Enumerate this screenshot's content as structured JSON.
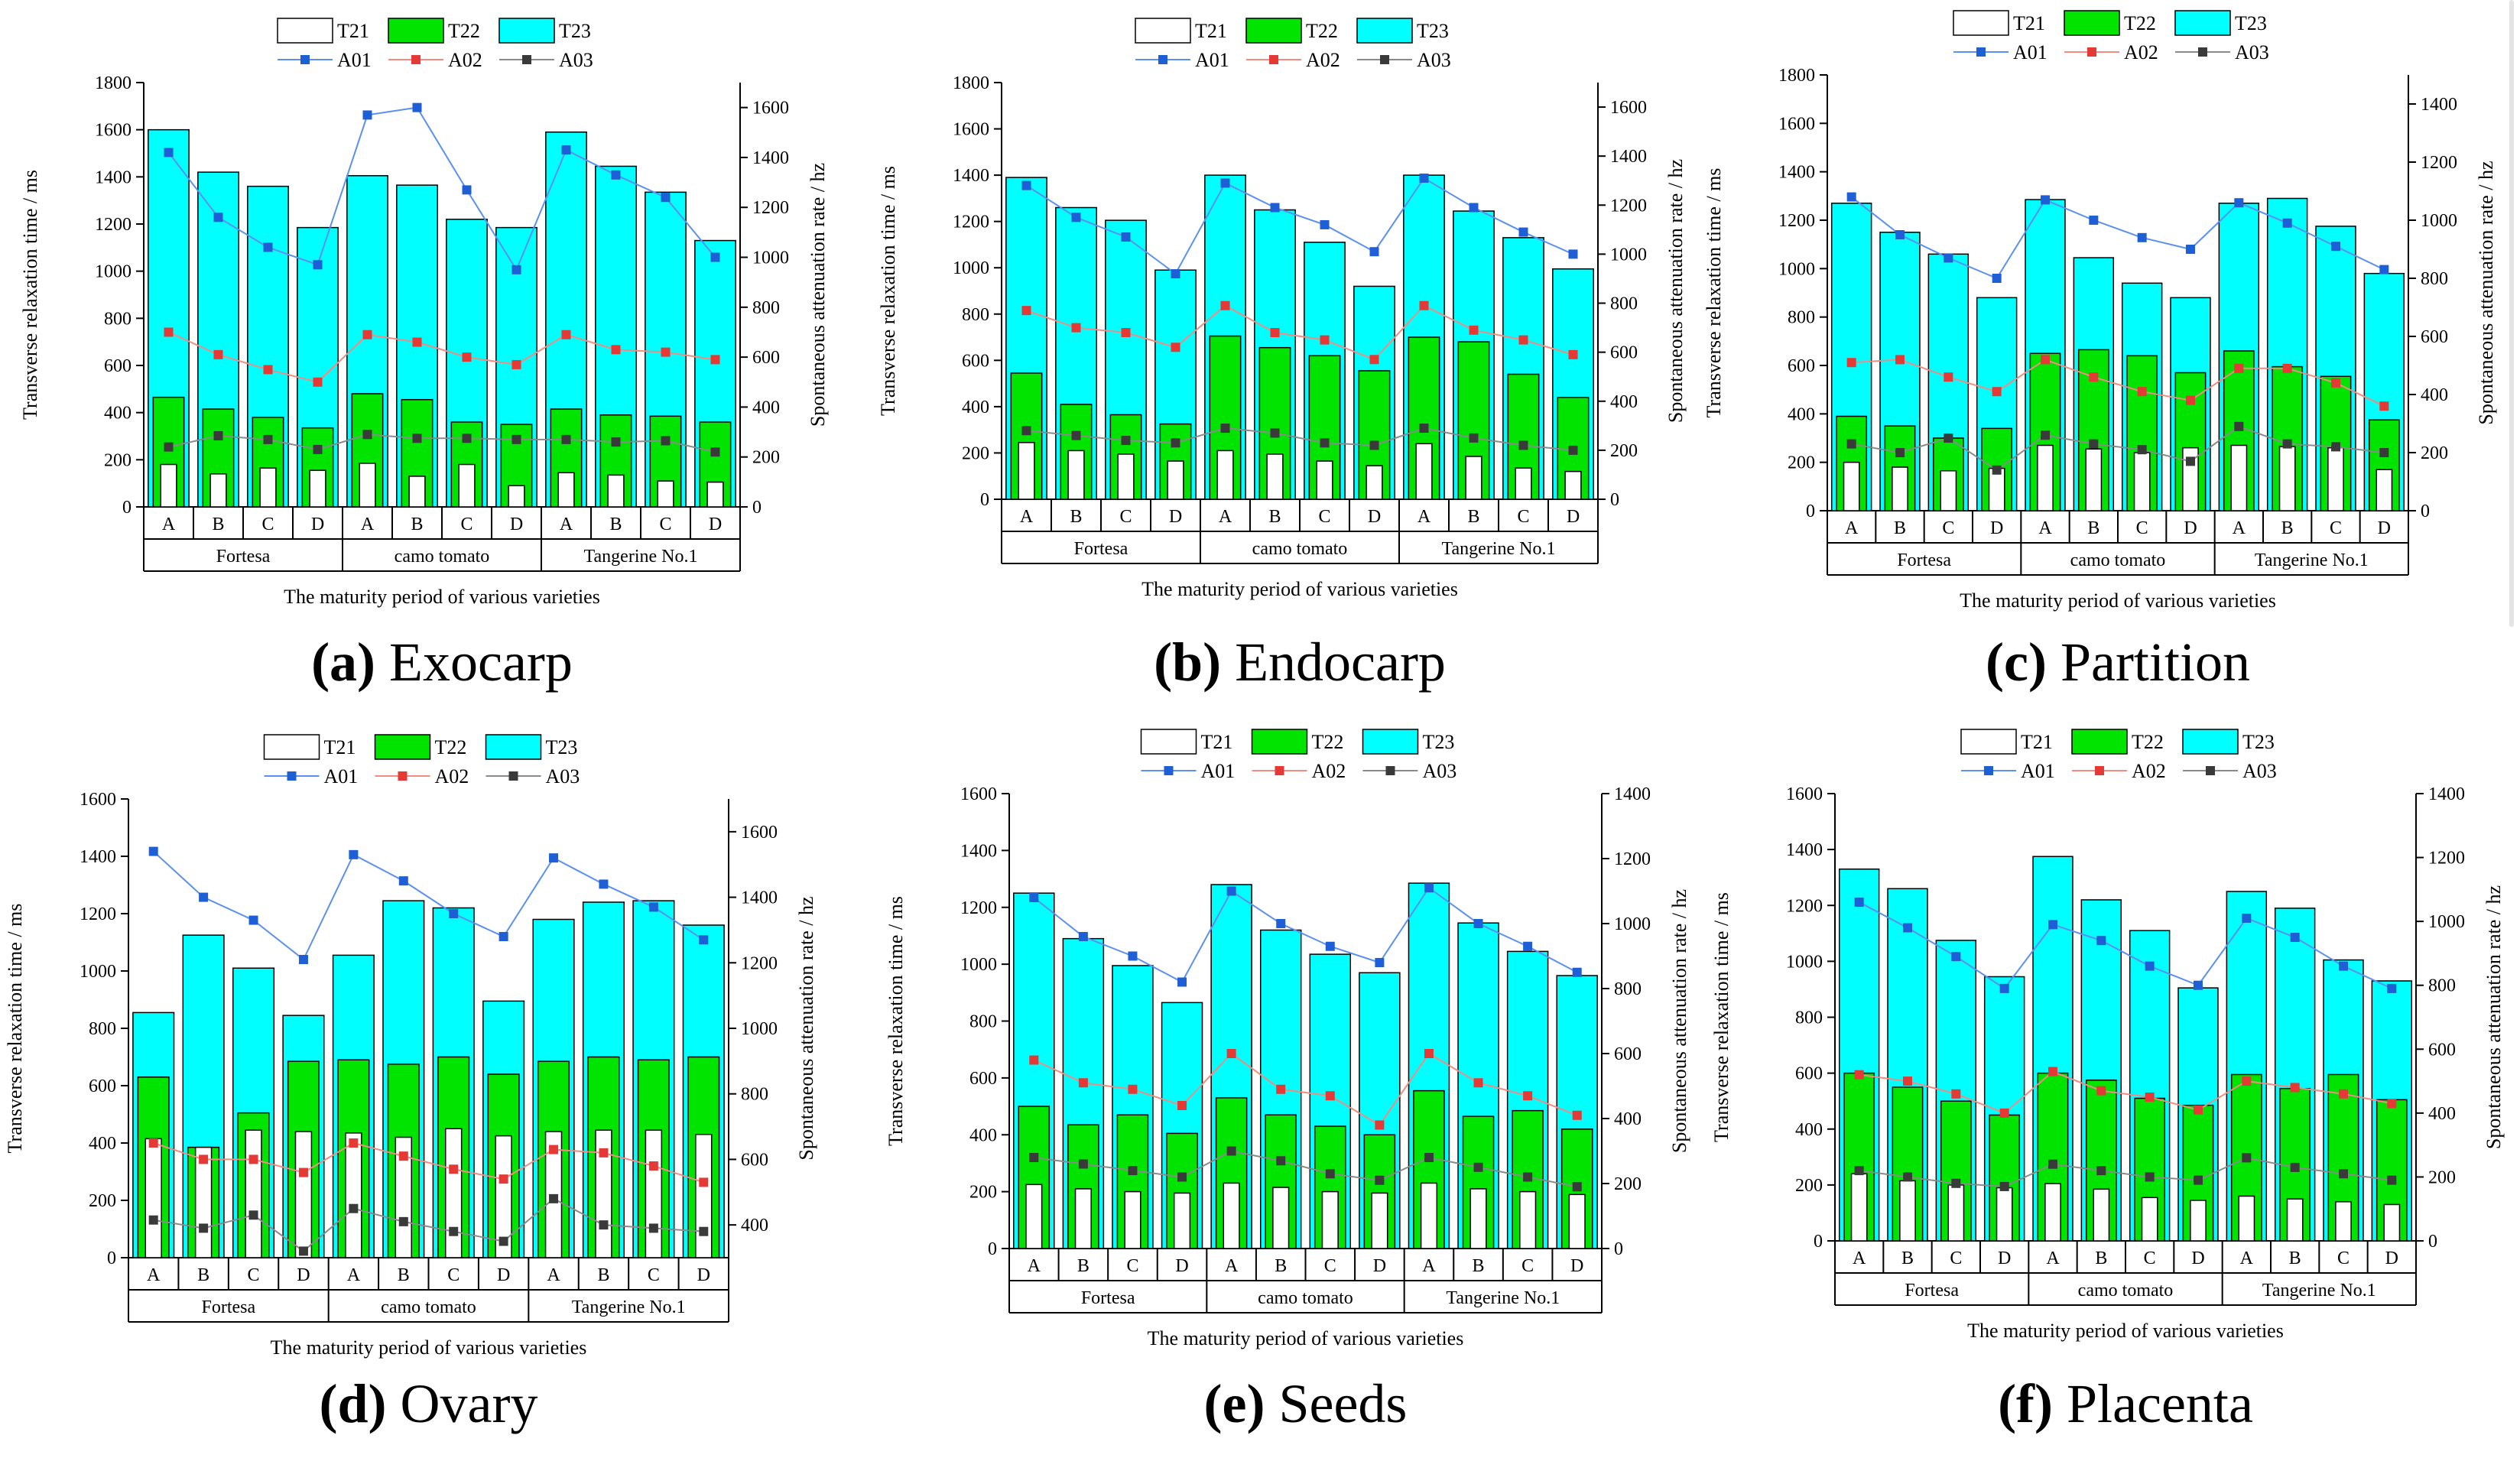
{
  "figure": {
    "colors": {
      "T21": "#ffffff",
      "T22": "#00e400",
      "T23": "#00ffff",
      "A01": "#1f5fd6",
      "A02": "#e53935",
      "A03": "#3a3a3a",
      "line_A01": "#5b8ff0",
      "line_A02": "#f28b82",
      "line_A03": "#8a8a8a"
    }
  },
  "chart_data": [
    {
      "type": "bar",
      "caption_letter": "(a)",
      "caption_text": "Exocarp",
      "title": "",
      "xlabel": "The maturity period of various varieties",
      "ylabel": "Transverse relaxation time / ms",
      "y2label": "Spontaneous attenuation rate / hz",
      "ylim": [
        0,
        1800
      ],
      "yticks": [
        "0",
        "200",
        "400",
        "600",
        "800",
        "1000",
        "1200",
        "1400",
        "1600",
        "1800"
      ],
      "y2lim": [
        0,
        1700
      ],
      "y2ticks": [
        "0",
        "200",
        "400",
        "600",
        "800",
        "1000",
        "1200",
        "1400",
        "1600"
      ],
      "stages": [
        "A",
        "B",
        "C",
        "D"
      ],
      "varieties": [
        "Fortesa",
        "camo tomato",
        "Tangerine No.1"
      ],
      "bar_series": [
        {
          "name": "T21",
          "values": [
            180,
            140,
            165,
            155,
            185,
            130,
            180,
            90,
            145,
            135,
            110,
            105
          ]
        },
        {
          "name": "T22",
          "values": [
            465,
            415,
            380,
            335,
            480,
            455,
            360,
            350,
            415,
            390,
            385,
            360
          ]
        },
        {
          "name": "T23",
          "values": [
            1600,
            1420,
            1360,
            1185,
            1405,
            1365,
            1220,
            1185,
            1590,
            1445,
            1335,
            1130
          ]
        }
      ],
      "line_series": [
        {
          "name": "A01",
          "values": [
            1420,
            1160,
            1040,
            970,
            1570,
            1600,
            1270,
            950,
            1430,
            1330,
            1240,
            1000
          ]
        },
        {
          "name": "A02",
          "values": [
            700,
            610,
            550,
            500,
            690,
            660,
            600,
            570,
            690,
            630,
            620,
            590
          ]
        },
        {
          "name": "A03",
          "values": [
            240,
            285,
            270,
            230,
            290,
            275,
            275,
            270,
            270,
            260,
            265,
            220
          ]
        }
      ]
    },
    {
      "type": "bar",
      "caption_letter": "(b)",
      "caption_text": "Endocarp",
      "title": "",
      "xlabel": "The maturity period of various varieties",
      "ylabel": "Transverse relaxation time / ms",
      "y2label": "Spontaneous attenuation rate / hz",
      "ylim": [
        0,
        1800
      ],
      "yticks": [
        "0",
        "200",
        "400",
        "600",
        "800",
        "1000",
        "1200",
        "1400",
        "1600",
        "1800"
      ],
      "y2lim": [
        0,
        1700
      ],
      "y2ticks": [
        "0",
        "200",
        "400",
        "600",
        "800",
        "1000",
        "1200",
        "1400",
        "1600"
      ],
      "stages": [
        "A",
        "B",
        "C",
        "D"
      ],
      "varieties": [
        "Fortesa",
        "camo tomato",
        "Tangerine No.1"
      ],
      "bar_series": [
        {
          "name": "T21",
          "values": [
            245,
            210,
            195,
            165,
            210,
            195,
            165,
            145,
            240,
            185,
            135,
            120
          ]
        },
        {
          "name": "T22",
          "values": [
            545,
            410,
            365,
            325,
            705,
            655,
            620,
            555,
            700,
            680,
            540,
            440
          ]
        },
        {
          "name": "T23",
          "values": [
            1390,
            1260,
            1205,
            990,
            1400,
            1250,
            1110,
            920,
            1400,
            1245,
            1130,
            995
          ]
        }
      ],
      "line_series": [
        {
          "name": "A01",
          "values": [
            1280,
            1150,
            1070,
            920,
            1290,
            1190,
            1120,
            1010,
            1310,
            1190,
            1090,
            1000
          ]
        },
        {
          "name": "A02",
          "values": [
            770,
            700,
            680,
            620,
            790,
            680,
            650,
            570,
            790,
            690,
            650,
            590
          ]
        },
        {
          "name": "A03",
          "values": [
            280,
            260,
            240,
            230,
            290,
            270,
            230,
            220,
            290,
            250,
            220,
            200
          ]
        }
      ]
    },
    {
      "type": "bar",
      "caption_letter": "(c)",
      "caption_text": "Partition",
      "title": "",
      "xlabel": "The maturity period of various varieties",
      "ylabel": "Transverse relaxation time / ms",
      "y2label": "Spontaneous attenuation rate / hz",
      "ylim": [
        0,
        1800
      ],
      "yticks": [
        "0",
        "200",
        "400",
        "600",
        "800",
        "1000",
        "1200",
        "1400",
        "1600",
        "1800"
      ],
      "y2lim": [
        0,
        1500
      ],
      "y2ticks": [
        "0",
        "200",
        "400",
        "600",
        "800",
        "1000",
        "1200",
        "1400"
      ],
      "stages": [
        "A",
        "B",
        "C",
        "D"
      ],
      "varieties": [
        "Fortesa",
        "camo tomato",
        "Tangerine No.1"
      ],
      "bar_series": [
        {
          "name": "T21",
          "values": [
            200,
            180,
            165,
            175,
            270,
            255,
            240,
            260,
            270,
            265,
            260,
            170
          ]
        },
        {
          "name": "T22",
          "values": [
            390,
            350,
            300,
            340,
            650,
            665,
            640,
            570,
            660,
            595,
            555,
            375
          ]
        },
        {
          "name": "T23",
          "values": [
            1270,
            1150,
            1060,
            880,
            1285,
            1045,
            940,
            880,
            1270,
            1290,
            1175,
            980
          ]
        }
      ],
      "line_series": [
        {
          "name": "A01",
          "values": [
            1080,
            950,
            870,
            800,
            1070,
            1000,
            940,
            900,
            1060,
            990,
            910,
            830
          ]
        },
        {
          "name": "A02",
          "values": [
            510,
            520,
            460,
            410,
            520,
            460,
            410,
            380,
            490,
            490,
            440,
            360
          ]
        },
        {
          "name": "A03",
          "values": [
            230,
            200,
            250,
            140,
            260,
            230,
            210,
            170,
            290,
            230,
            220,
            200
          ]
        }
      ]
    },
    {
      "type": "bar",
      "caption_letter": "(d)",
      "caption_text": "Ovary",
      "title": "",
      "xlabel": "The maturity period of various varieties",
      "ylabel": "Transverse relaxation time / ms",
      "y2label": "Spontaneous attenuation rate / hz",
      "ylim": [
        0,
        1600
      ],
      "yticks": [
        "0",
        "200",
        "400",
        "600",
        "800",
        "1000",
        "1200",
        "1400",
        "1600"
      ],
      "y2lim": [
        300,
        1700
      ],
      "y2ticks": [
        "400",
        "600",
        "800",
        "1000",
        "1200",
        "1400",
        "1600"
      ],
      "stages": [
        "A",
        "B",
        "C",
        "D"
      ],
      "varieties": [
        "Fortesa",
        "camo tomato",
        "Tangerine No.1"
      ],
      "bar_series": [
        {
          "name": "T21",
          "values": [
            415,
            385,
            445,
            440,
            435,
            420,
            450,
            425,
            440,
            445,
            445,
            430
          ]
        },
        {
          "name": "T22",
          "values": [
            630,
            385,
            505,
            685,
            690,
            675,
            700,
            640,
            685,
            700,
            690,
            700
          ]
        },
        {
          "name": "T23",
          "values": [
            855,
            1125,
            1010,
            845,
            1055,
            1245,
            1220,
            895,
            1180,
            1240,
            1245,
            1160
          ]
        }
      ],
      "line_series": [
        {
          "name": "A01",
          "values": [
            1540,
            1400,
            1330,
            1210,
            1530,
            1450,
            1350,
            1280,
            1520,
            1440,
            1370,
            1270
          ]
        },
        {
          "name": "A02",
          "values": [
            650,
            600,
            600,
            560,
            650,
            610,
            570,
            540,
            630,
            620,
            580,
            530
          ]
        },
        {
          "name": "A03",
          "values": [
            415,
            390,
            430,
            320,
            450,
            410,
            380,
            350,
            480,
            400,
            390,
            380
          ]
        }
      ]
    },
    {
      "type": "bar",
      "caption_letter": "(e)",
      "caption_text": "Seeds",
      "title": "",
      "xlabel": "The maturity period of various varieties",
      "ylabel": "Transverse relaxation time / ms",
      "y2label": "Spontaneous attenuation rate / hz",
      "ylim": [
        0,
        1600
      ],
      "yticks": [
        "0",
        "200",
        "400",
        "600",
        "800",
        "1000",
        "1200",
        "1400",
        "1600"
      ],
      "y2lim": [
        0,
        1400
      ],
      "y2ticks": [
        "0",
        "200",
        "400",
        "600",
        "800",
        "1000",
        "1200",
        "1400"
      ],
      "stages": [
        "A",
        "B",
        "C",
        "D"
      ],
      "varieties": [
        "Fortesa",
        "camo tomato",
        "Tangerine No.1"
      ],
      "bar_series": [
        {
          "name": "T21",
          "values": [
            225,
            210,
            200,
            195,
            230,
            215,
            200,
            195,
            230,
            210,
            200,
            190
          ]
        },
        {
          "name": "T22",
          "values": [
            500,
            435,
            470,
            405,
            530,
            470,
            430,
            400,
            555,
            465,
            485,
            420
          ]
        },
        {
          "name": "T23",
          "values": [
            1250,
            1090,
            995,
            865,
            1280,
            1120,
            1035,
            970,
            1285,
            1145,
            1045,
            960
          ]
        }
      ],
      "line_series": [
        {
          "name": "A01",
          "values": [
            1080,
            960,
            900,
            820,
            1100,
            1000,
            930,
            880,
            1110,
            1000,
            930,
            850
          ]
        },
        {
          "name": "A02",
          "values": [
            580,
            510,
            490,
            440,
            600,
            490,
            470,
            380,
            600,
            510,
            470,
            410
          ]
        },
        {
          "name": "A03",
          "values": [
            280,
            260,
            240,
            220,
            300,
            270,
            230,
            210,
            280,
            250,
            220,
            190
          ]
        }
      ]
    },
    {
      "type": "bar",
      "caption_letter": "(f)",
      "caption_text": "Placenta",
      "title": "",
      "xlabel": "The maturity period of various varieties",
      "ylabel": "Transverse relaxation time / ms",
      "y2label": "Spontaneous attenuation rate / hz",
      "ylim": [
        0,
        1600
      ],
      "yticks": [
        "0",
        "200",
        "400",
        "600",
        "800",
        "1000",
        "1200",
        "1400",
        "1600"
      ],
      "y2lim": [
        0,
        1400
      ],
      "y2ticks": [
        "0",
        "200",
        "400",
        "600",
        "800",
        "1000",
        "1200",
        "1400"
      ],
      "stages": [
        "A",
        "B",
        "C",
        "D"
      ],
      "varieties": [
        "Fortesa",
        "camo tomato",
        "Tangerine No.1"
      ],
      "bar_series": [
        {
          "name": "T21",
          "values": [
            240,
            215,
            200,
            190,
            205,
            185,
            155,
            145,
            160,
            150,
            140,
            130
          ]
        },
        {
          "name": "T22",
          "values": [
            600,
            550,
            500,
            450,
            600,
            575,
            510,
            485,
            595,
            545,
            595,
            505
          ]
        },
        {
          "name": "T23",
          "values": [
            1330,
            1260,
            1075,
            945,
            1375,
            1220,
            1110,
            905,
            1250,
            1190,
            1005,
            930
          ]
        }
      ],
      "line_series": [
        {
          "name": "A01",
          "values": [
            1060,
            980,
            890,
            790,
            990,
            940,
            860,
            800,
            1010,
            950,
            860,
            790
          ]
        },
        {
          "name": "A02",
          "values": [
            520,
            500,
            460,
            400,
            530,
            470,
            450,
            410,
            500,
            480,
            460,
            430
          ]
        },
        {
          "name": "A03",
          "values": [
            220,
            200,
            180,
            170,
            240,
            220,
            200,
            190,
            260,
            230,
            210,
            190
          ]
        }
      ]
    }
  ]
}
